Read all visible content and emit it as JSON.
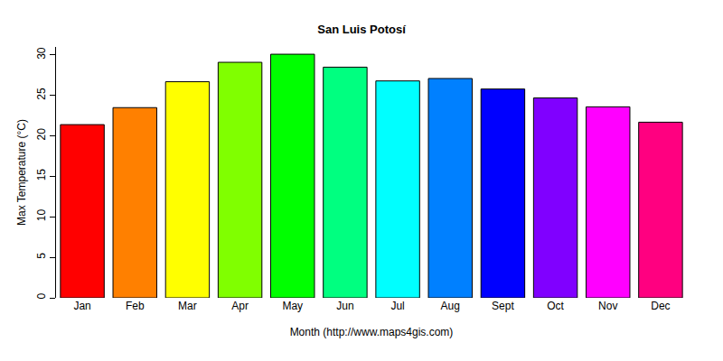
{
  "chart_data": {
    "type": "bar",
    "title": "San Luis Potosí",
    "x_label": "Month (http://www.maps4gis.com)",
    "y_label": "Max Temperature (°C)",
    "categories": [
      "Jan",
      "Feb",
      "Mar",
      "Apr",
      "May",
      "Jun",
      "Jul",
      "Aug",
      "Sept",
      "Oct",
      "Nov",
      "Dec"
    ],
    "values": [
      21.4,
      23.5,
      26.7,
      29.1,
      30.1,
      28.5,
      26.8,
      27.1,
      25.8,
      24.7,
      23.6,
      21.7
    ],
    "colors": [
      "#FF0000",
      "#FF8000",
      "#FFFF00",
      "#80FF00",
      "#00FF00",
      "#00FF80",
      "#00FFFF",
      "#0080FF",
      "#0000FF",
      "#8000FF",
      "#FF00FF",
      "#FF0080"
    ],
    "ylim": [
      0,
      31
    ],
    "yticks": [
      0,
      5,
      10,
      15,
      20,
      25,
      30
    ],
    "grid": false
  }
}
